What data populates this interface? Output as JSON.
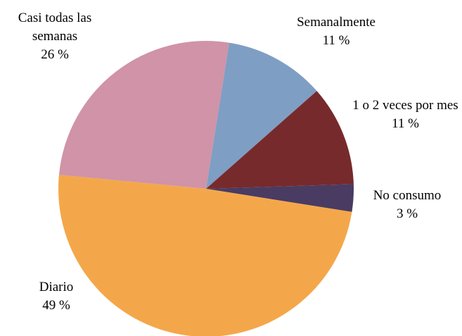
{
  "chart_data": {
    "type": "pie",
    "categories": [
      "Semanalmente",
      "1 o 2 veces por mes",
      "No consumo",
      "Diario",
      "Casi todas las semanas"
    ],
    "values": [
      11,
      11,
      3,
      49,
      26
    ],
    "value_labels": [
      "11 %",
      "11 %",
      "3 %",
      "49 %",
      "26 %"
    ],
    "colors": [
      "#7f9ec4",
      "#772a2c",
      "#4a3b62",
      "#f4a74a",
      "#d093a7"
    ]
  }
}
